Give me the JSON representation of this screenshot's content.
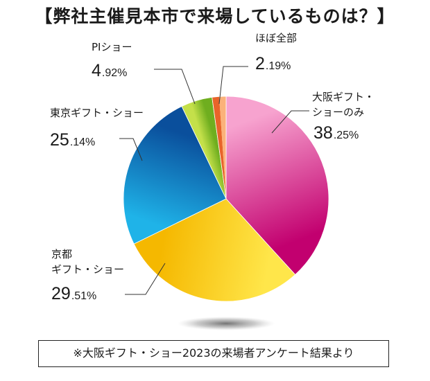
{
  "title": "【弊社主催見本市で来場しているものは？】",
  "source_note": "※大阪ギフト・ショー2023の来場者アンケート結果より",
  "chart_data": {
    "type": "pie",
    "title": "【弊社主催見本市で来場しているものは？】",
    "start": "12 o'clock, clockwise",
    "slices": [
      {
        "label_lines": [
          "大阪ギフト・",
          "ショーのみ"
        ],
        "value": 38.25,
        "display": "38.25%",
        "color_light": "#f7a3cf",
        "color_dark": "#c2006f"
      },
      {
        "label_lines": [
          "京都",
          "ギフト・ショー"
        ],
        "value": 29.51,
        "display": "29.51%",
        "color_light": "#ffe64a",
        "color_dark": "#f5b800"
      },
      {
        "label_lines": [
          "東京ギフト・ショー"
        ],
        "value": 25.14,
        "display": "25.14%",
        "color_light": "#1fb3e8",
        "color_dark": "#0a4f9c"
      },
      {
        "label_lines": [
          "PIショー"
        ],
        "value": 4.92,
        "display": "4.92%",
        "color_light": "#c4e04a",
        "color_dark": "#6fae1f"
      },
      {
        "label_lines": [
          "ほぼ全部"
        ],
        "value": 2.19,
        "display": "2.19%",
        "color_light": "#fbb27a",
        "color_dark": "#e8642a"
      }
    ]
  }
}
